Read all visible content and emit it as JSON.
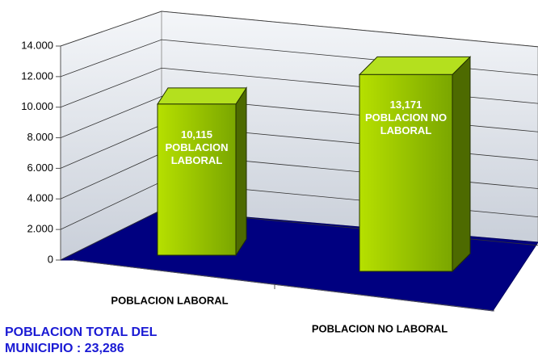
{
  "chart_data": {
    "type": "bar3d",
    "categories": [
      "POBLACION LABORAL",
      "POBLACION NO LABORAL"
    ],
    "values": [
      10115,
      13171
    ],
    "value_labels": [
      "10,115",
      "13,171"
    ],
    "color": "#9ccc00",
    "floor_color": "#000080",
    "ylim": [
      0,
      14000
    ],
    "yticks": [
      0,
      {
        "value": 2000,
        "label": "2.000"
      },
      {
        "value": 4000,
        "label": "4.000"
      },
      {
        "value": 6000,
        "label": "6.000"
      },
      {
        "value": 8000,
        "label": "8.000"
      },
      {
        "value": 10000,
        "label": "10.000"
      },
      {
        "value": 12000,
        "label": "12.000"
      },
      {
        "value": 14000,
        "label": "14.000"
      }
    ],
    "grid": true,
    "annotation": "POBLACION TOTAL DEL MUNICIPIO : 23,286"
  }
}
